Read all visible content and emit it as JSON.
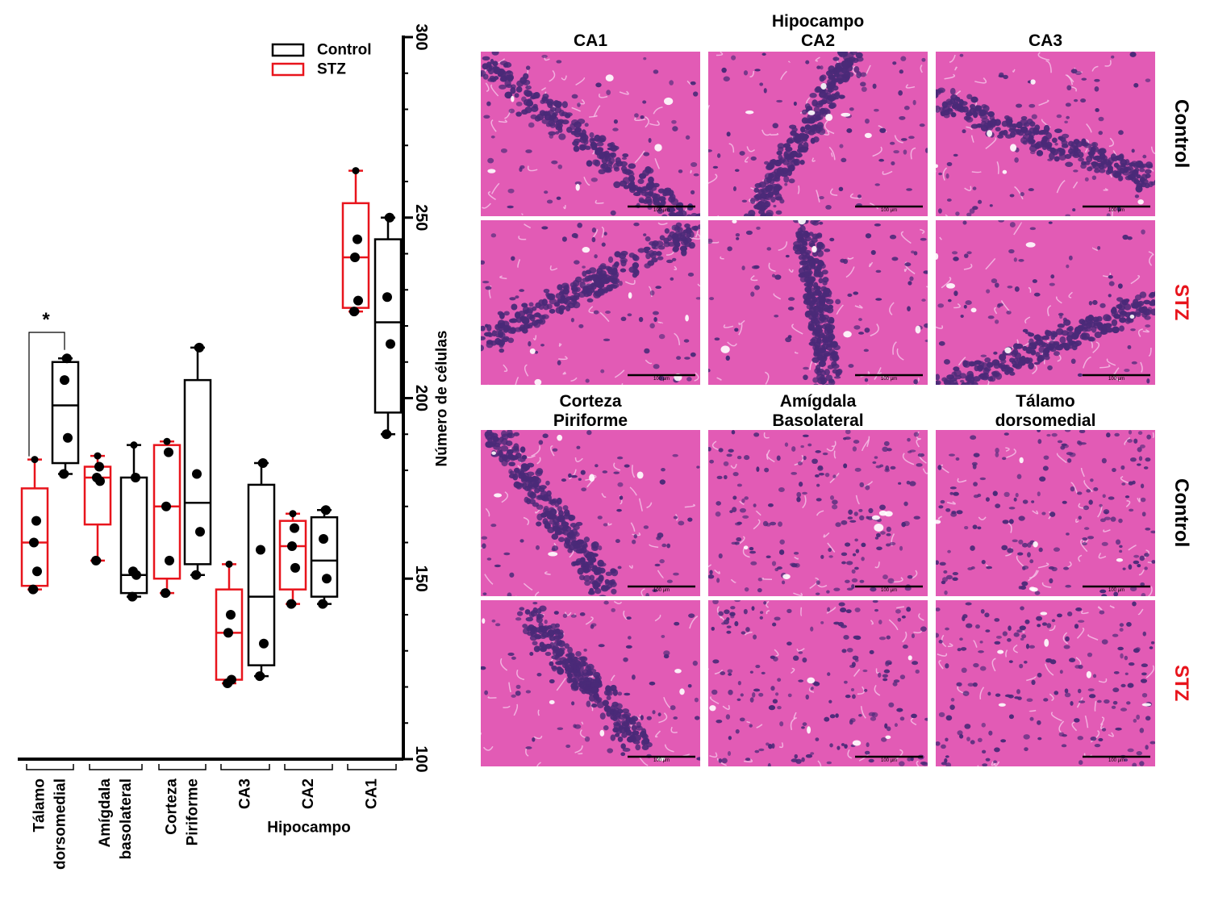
{
  "chart_data": {
    "type": "boxplot",
    "ylabel": "Número de células",
    "ylim": [
      100,
      300
    ],
    "yticks": [
      100,
      150,
      200,
      250,
      300
    ],
    "legend": {
      "placement": "top-right",
      "entries": [
        {
          "name": "Control",
          "color": "#000000"
        },
        {
          "name": "STZ",
          "color": "#e8141c"
        }
      ]
    },
    "categories": [
      {
        "label": [
          "Tálamo",
          "dorsomedial"
        ]
      },
      {
        "label": [
          "Amígdala",
          "basolateral"
        ]
      },
      {
        "label": [
          "Corteza",
          "Piriforme"
        ]
      },
      {
        "label": [
          "CA3"
        ]
      },
      {
        "label": [
          "CA2"
        ]
      },
      {
        "label": [
          "CA1"
        ]
      }
    ],
    "group_label": "Hipocampo",
    "series": [
      {
        "name": "STZ",
        "color": "#e8141c",
        "boxes": [
          {
            "min": 147,
            "q1": 148,
            "median": 160,
            "q3": 175,
            "max": 183,
            "points": [
              147,
              152,
              160,
              166
            ]
          },
          {
            "min": 155,
            "q1": 165,
            "median": 178,
            "q3": 181,
            "max": 184,
            "points": [
              155,
              177,
              178,
              181
            ]
          },
          {
            "min": 146,
            "q1": 150,
            "median": 170,
            "q3": 187,
            "max": 188,
            "points": [
              146,
              155,
              170,
              185
            ]
          },
          {
            "min": 121,
            "q1": 122,
            "median": 135,
            "q3": 147,
            "max": 154,
            "points": [
              121,
              122,
              135,
              140
            ]
          },
          {
            "min": 143,
            "q1": 147,
            "median": 159,
            "q3": 166,
            "max": 168,
            "points": [
              143,
              153,
              159,
              164
            ]
          },
          {
            "min": 224,
            "q1": 225,
            "median": 239,
            "q3": 254,
            "max": 263,
            "points": [
              224,
              227,
              239,
              244
            ]
          }
        ]
      },
      {
        "name": "Control",
        "color": "#000000",
        "boxes": [
          {
            "min": 179,
            "q1": 182,
            "median": 198,
            "q3": 210,
            "max": 211,
            "points": [
              179,
              189,
              205,
              211
            ]
          },
          {
            "min": 145,
            "q1": 146,
            "median": 151,
            "q3": 178,
            "max": 187,
            "points": [
              145,
              151,
              152,
              178
            ]
          },
          {
            "min": 151,
            "q1": 154,
            "median": 171,
            "q3": 205,
            "max": 214,
            "points": [
              151,
              163,
              179,
              214
            ]
          },
          {
            "min": 123,
            "q1": 126,
            "median": 145,
            "q3": 176,
            "max": 182,
            "points": [
              123,
              132,
              158,
              182
            ]
          },
          {
            "min": 143,
            "q1": 145,
            "median": 155,
            "q3": 167,
            "max": 169,
            "points": [
              143,
              150,
              161,
              169
            ]
          },
          {
            "min": 190,
            "q1": 196,
            "median": 221,
            "q3": 244,
            "max": 250,
            "points": [
              190,
              215,
              228,
              250
            ]
          }
        ]
      }
    ],
    "annotations": [
      {
        "text": "*",
        "between": "Tálamo dorsomedial STZ vs Control"
      }
    ]
  },
  "micrographs": {
    "title": "Hipocampo",
    "top_columns": [
      "CA1",
      "CA2",
      "CA3"
    ],
    "bottom_columns": [
      [
        "Corteza",
        "Piriforme"
      ],
      [
        "Amígdala",
        "Basolateral"
      ],
      [
        "Tálamo",
        "dorsomedial"
      ]
    ],
    "row_labels": [
      "Control",
      "STZ"
    ],
    "row_colors": {
      "Control": "#000000",
      "STZ": "#e8141c"
    },
    "scale_bar": "100 µm",
    "stain_colors": {
      "tissue": "#e25bb5",
      "nuclei": "#4a2a78"
    }
  }
}
